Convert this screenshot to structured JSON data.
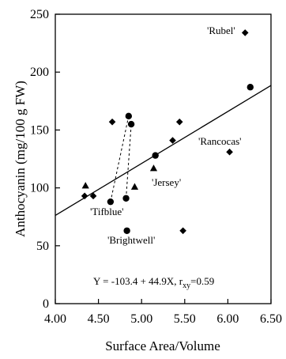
{
  "chart_data": {
    "type": "scatter",
    "xlabel": "Surface Area/Volume",
    "ylabel": "Anthocyanin (mg/100 g FW)",
    "xlim": [
      4.0,
      6.5
    ],
    "ylim": [
      0,
      250
    ],
    "xticks": [
      "4.00",
      "4.50",
      "5.00",
      "5.50",
      "6.00",
      "6.50"
    ],
    "yticks": [
      "0",
      "50",
      "100",
      "150",
      "200",
      "250"
    ],
    "grid": false,
    "equation": {
      "prefix": "Y = -103.4 + 44.9X, r",
      "subscript": "xy",
      "suffix": "=0.59"
    },
    "regression": {
      "intercept": -103.4,
      "slope": 44.9
    },
    "series": [
      {
        "marker": "diamond",
        "points": [
          {
            "x": 4.34,
            "y": 93
          },
          {
            "x": 4.44,
            "y": 93
          },
          {
            "x": 4.66,
            "y": 157
          },
          {
            "x": 5.36,
            "y": 141
          },
          {
            "x": 5.44,
            "y": 157
          },
          {
            "x": 5.48,
            "y": 63
          },
          {
            "x": 6.02,
            "y": 131
          },
          {
            "x": 6.2,
            "y": 234
          }
        ]
      },
      {
        "marker": "circle",
        "points": [
          {
            "x": 4.64,
            "y": 88
          },
          {
            "x": 4.82,
            "y": 91
          },
          {
            "x": 4.83,
            "y": 63
          },
          {
            "x": 4.85,
            "y": 162
          },
          {
            "x": 4.88,
            "y": 155
          },
          {
            "x": 5.16,
            "y": 128
          },
          {
            "x": 6.26,
            "y": 187
          }
        ]
      },
      {
        "marker": "triangle",
        "points": [
          {
            "x": 4.35,
            "y": 102
          },
          {
            "x": 4.92,
            "y": 101
          },
          {
            "x": 5.14,
            "y": 117
          }
        ]
      }
    ],
    "dashed_links": [
      {
        "from": {
          "x": 4.64,
          "y": 88
        },
        "to": {
          "x": 4.85,
          "y": 162
        }
      },
      {
        "from": {
          "x": 4.82,
          "y": 91
        },
        "to": {
          "x": 4.88,
          "y": 155
        }
      }
    ],
    "annotations": [
      {
        "text": "'Rubel'"
      },
      {
        "text": "'Rancocas'"
      },
      {
        "text": "'Jersey'"
      },
      {
        "text": "'Tifblue'"
      },
      {
        "text": "'Brightwell'"
      }
    ]
  }
}
